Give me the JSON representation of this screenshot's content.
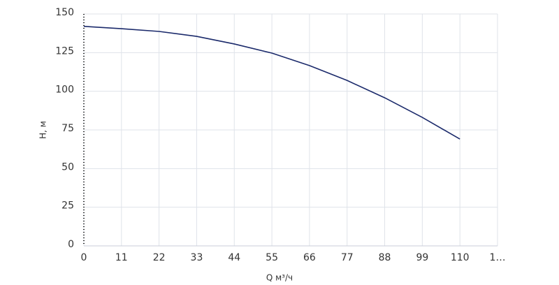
{
  "chart_data": {
    "type": "line",
    "x_label": "Q м³/ч",
    "y_label": "H, м",
    "x": [
      0,
      11,
      22,
      33,
      44,
      55,
      66,
      77,
      88,
      99,
      110
    ],
    "series": [
      {
        "name": "H",
        "color": "#1b2a6b",
        "values": [
          142,
          140.5,
          138.7,
          135.5,
          130.6,
          124.7,
          116.6,
          107,
          95.8,
          83.1,
          69.1
        ]
      }
    ],
    "xlim": [
      0,
      121
    ],
    "xticks": [
      0,
      11,
      22,
      33,
      44,
      55,
      66,
      77,
      88,
      99,
      110,
      {
        "value": 121,
        "label": "1…"
      }
    ],
    "ylim": [
      0,
      150
    ],
    "yticks": [
      0,
      25,
      50,
      75,
      100,
      125,
      150
    ],
    "grid": true
  }
}
